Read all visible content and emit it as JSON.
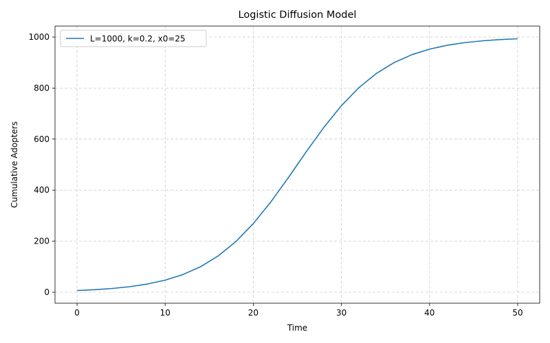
{
  "chart_data": {
    "type": "line",
    "title": "Logistic Diffusion Model",
    "xlabel": "Time",
    "ylabel": "Cumulative Adopters",
    "xlim": [
      -2.5,
      52.5
    ],
    "ylim": [
      -43,
      1043
    ],
    "xticks": [
      0,
      10,
      20,
      30,
      40,
      50
    ],
    "yticks": [
      0,
      200,
      400,
      600,
      800,
      1000
    ],
    "grid": true,
    "legend_position": "top-left",
    "series": [
      {
        "name": "L=1000, k=0.2, x0=25",
        "color": "#1f77b4",
        "x": [
          0,
          2,
          4,
          6,
          8,
          10,
          12,
          14,
          16,
          18,
          20,
          22,
          24,
          25,
          26,
          28,
          30,
          32,
          34,
          36,
          38,
          40,
          42,
          44,
          46,
          48,
          50
        ],
        "y": [
          6.7,
          9.9,
          14.8,
          21.9,
          32.2,
          47.4,
          69.1,
          99.7,
          141.9,
          197.8,
          268.9,
          354.3,
          450.2,
          500.0,
          549.8,
          645.7,
          731.1,
          802.2,
          858.1,
          900.3,
          930.9,
          952.6,
          967.8,
          978.1,
          985.2,
          990.1,
          993.3
        ]
      }
    ]
  }
}
